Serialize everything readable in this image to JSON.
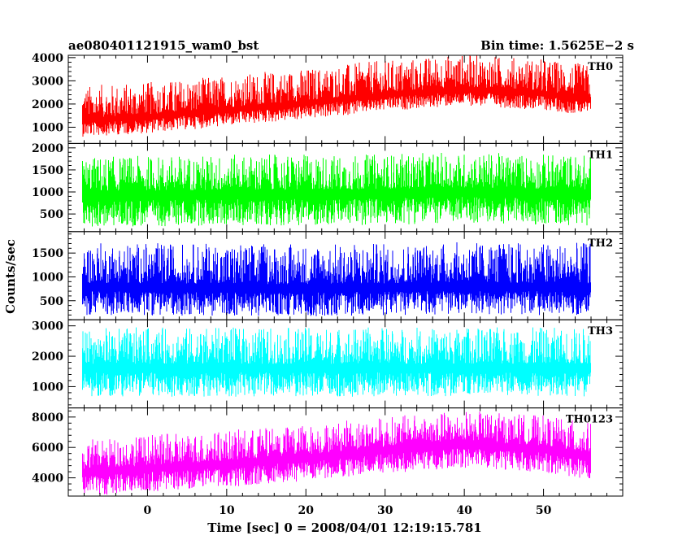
{
  "header": {
    "left_title": "ae080401121915_wam0_bst",
    "right_title": "Bin time: 1.5625E−2 s"
  },
  "colors": {
    "axis": "#000000",
    "TH0": "#ff0000",
    "TH1": "#00ff00",
    "TH2": "#0000ff",
    "TH3": "#00ffff",
    "TH0123": "#ff00ff"
  },
  "chart_data": {
    "type": "line",
    "xlabel": "Time [sec] 0 = 2008/04/01 12:19:15.781",
    "ylabel": "Counts/sec",
    "xlim": [
      -10,
      60
    ],
    "x_range_data": [
      -8.2,
      56.0
    ],
    "x_ticks": [
      0,
      10,
      20,
      30,
      40,
      50
    ],
    "x_tick_labels": [
      "0",
      "10",
      "20",
      "30",
      "40",
      "50"
    ],
    "x_minor_step": 2,
    "grid": false,
    "bin_time_s": 0.015625,
    "panels": [
      {
        "name": "TH0",
        "color": "#ff0000",
        "ylim": [
          300,
          4100
        ],
        "y_ticks": [
          1000,
          2000,
          3000,
          4000
        ],
        "y_tick_labels": [
          "1000",
          "2000",
          "3000",
          "4000"
        ],
        "trend": [
          [
            -8,
            1250
          ],
          [
            0,
            1400
          ],
          [
            10,
            1700
          ],
          [
            20,
            2000
          ],
          [
            30,
            2350
          ],
          [
            40,
            2600
          ],
          [
            50,
            2400
          ],
          [
            56,
            2150
          ]
        ],
        "spread": [
          600,
          1400
        ]
      },
      {
        "name": "TH1",
        "color": "#00ff00",
        "ylim": [
          100,
          2100
        ],
        "y_ticks": [
          500,
          1000,
          1500,
          2000
        ],
        "y_tick_labels": [
          "500",
          "1000",
          "1500",
          "2000"
        ],
        "trend": [
          [
            -8,
            850
          ],
          [
            10,
            900
          ],
          [
            25,
            900
          ],
          [
            40,
            950
          ],
          [
            56,
            900
          ]
        ],
        "spread": [
          600,
          800
        ]
      },
      {
        "name": "TH2",
        "color": "#0000ff",
        "ylim": [
          100,
          1950
        ],
        "y_ticks": [
          500,
          1000,
          1500
        ],
        "y_tick_labels": [
          "500",
          "1000",
          "1500"
        ],
        "trend": [
          [
            -8,
            750
          ],
          [
            20,
            720
          ],
          [
            40,
            760
          ],
          [
            56,
            740
          ]
        ],
        "spread": [
          500,
          850
        ]
      },
      {
        "name": "TH3",
        "color": "#00ffff",
        "ylim": [
          300,
          3200
        ],
        "y_ticks": [
          1000,
          2000,
          3000
        ],
        "y_tick_labels": [
          "1000",
          "2000",
          "3000"
        ],
        "trend": [
          [
            -8,
            1550
          ],
          [
            20,
            1550
          ],
          [
            40,
            1550
          ],
          [
            56,
            1550
          ]
        ],
        "spread": [
          800,
          1200
        ]
      },
      {
        "name": "TH0123",
        "color": "#ff00ff",
        "ylim": [
          2800,
          8600
        ],
        "y_ticks": [
          4000,
          6000,
          8000
        ],
        "y_tick_labels": [
          "4000",
          "6000",
          "8000"
        ],
        "trend": [
          [
            -8,
            4200
          ],
          [
            0,
            4500
          ],
          [
            10,
            4800
          ],
          [
            20,
            5200
          ],
          [
            30,
            5700
          ],
          [
            40,
            6100
          ],
          [
            50,
            5800
          ],
          [
            56,
            5300
          ]
        ],
        "spread": [
          1300,
          2000
        ]
      }
    ]
  }
}
